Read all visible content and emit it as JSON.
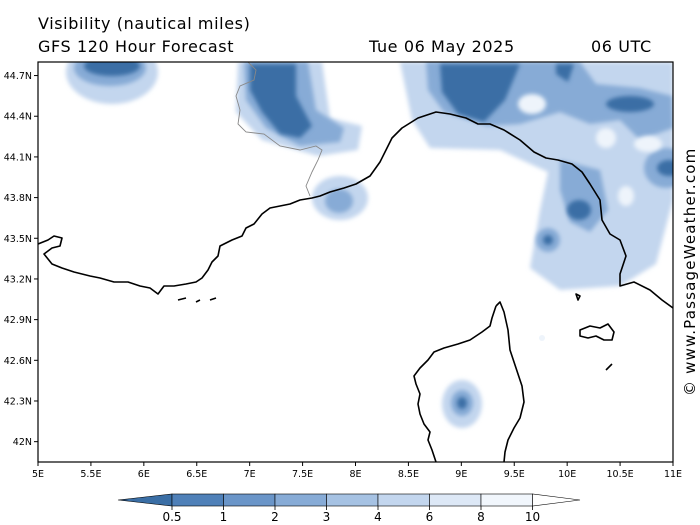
{
  "header": {
    "parameter": "Visibility (nautical miles)",
    "model": "GFS 120 Hour Forecast",
    "date": "Tue 06 May 2025",
    "time": "06 UTC"
  },
  "credit": "© www.PassageWeather.com",
  "map": {
    "region": "Ligurian Sea / Gulf of Lion / Corsica",
    "lon_ticks": [
      "5E",
      "5.5E",
      "6E",
      "6.5E",
      "7E",
      "7.5E",
      "8E",
      "8.5E",
      "9E",
      "9.5E",
      "10E",
      "10.5E",
      "11E"
    ],
    "lat_ticks": [
      "44.7N",
      "44.4N",
      "44.1N",
      "43.8N",
      "43.5N",
      "43.2N",
      "42.9N",
      "42.6N",
      "42.3N",
      "42N"
    ],
    "lon_range": [
      5,
      11
    ],
    "lat_range": [
      41.85,
      44.8
    ],
    "colors": {
      "frame": "#000000",
      "coastline": "#000000",
      "border": "#888888",
      "sea_land_background": "#ffffff"
    }
  },
  "legend": {
    "labels": [
      "0.5",
      "1",
      "2",
      "3",
      "4",
      "6",
      "8",
      "10"
    ],
    "colors": [
      "#3a6ea5",
      "#4f80b8",
      "#6a95c8",
      "#87abd6",
      "#a6c2e3",
      "#c3d6ee",
      "#dde8f6",
      "#f1f6fc",
      "#ffffff"
    ]
  }
}
